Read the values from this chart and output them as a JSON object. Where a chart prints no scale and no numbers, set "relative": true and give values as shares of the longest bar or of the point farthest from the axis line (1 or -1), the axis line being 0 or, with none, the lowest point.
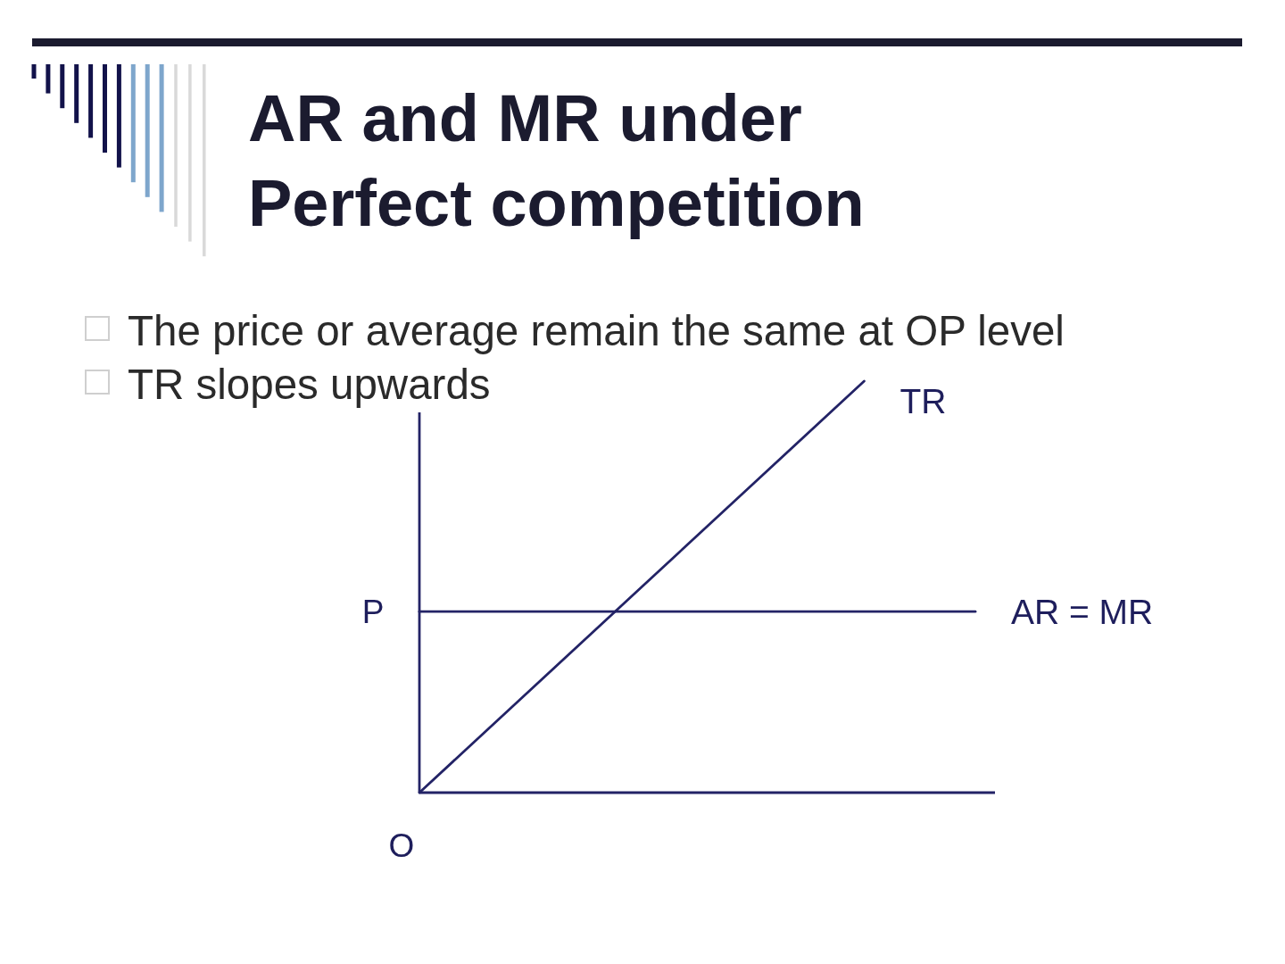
{
  "chart_data": {
    "type": "line",
    "title": "AR and MR under Perfect competition",
    "categories": [
      null,
      null,
      null,
      null,
      null,
      null
    ],
    "relative": true,
    "series": [
      {
        "name": "TR",
        "color": "#232366",
        "values": [
          0,
          0.25,
          0.5,
          0.75,
          1,
          null
        ]
      },
      {
        "name": "AR = MR",
        "color": "#232366",
        "values": [
          0.44,
          0.44,
          0.44,
          0.44,
          0.44,
          0.44
        ]
      }
    ],
    "annotations": [
      "The price or average remain the same at OP level",
      "TR slopes upwards",
      "P",
      "O"
    ]
  }
}
